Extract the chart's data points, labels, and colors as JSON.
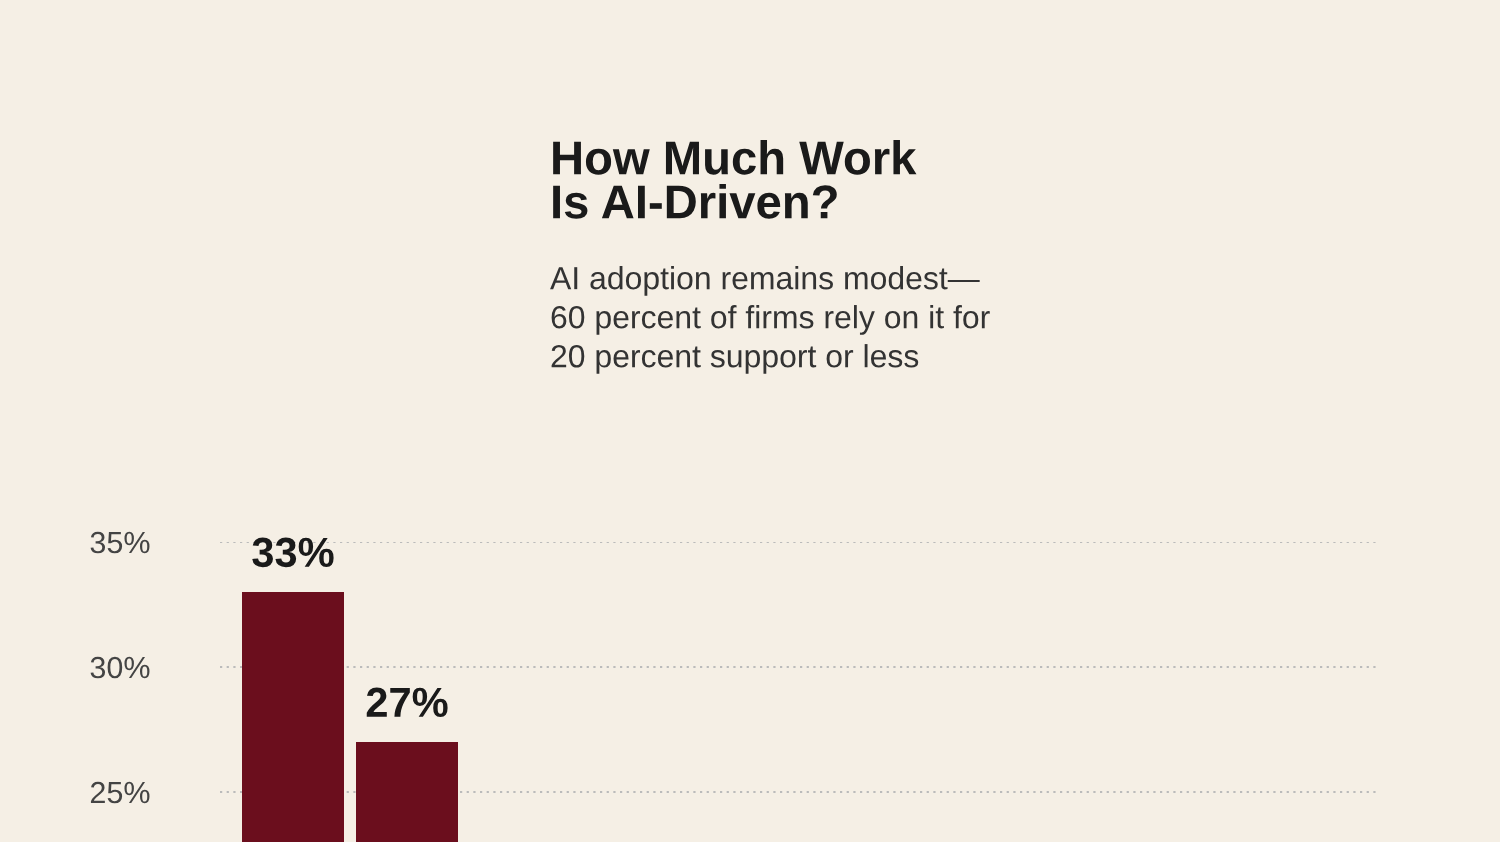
{
  "chart_data": {
    "type": "bar",
    "title": "How Much Work\nIs AI-Driven?",
    "subtitle": "AI adoption remains modest—\n60 percent of firms rely on it for\n20 percent support or less",
    "categories": [
      null,
      null
    ],
    "series": [
      {
        "color": "#6b0e1d",
        "values": [
          33,
          27
        ]
      }
    ],
    "value_labels": [
      "33%",
      "27%"
    ],
    "ylim": [
      23,
      35
    ],
    "yticks": [
      {
        "value": 25,
        "label": "25%"
      },
      {
        "value": 30,
        "label": "30%"
      },
      {
        "value": 35,
        "label": "35%"
      }
    ],
    "grid": "y",
    "legend": false
  }
}
